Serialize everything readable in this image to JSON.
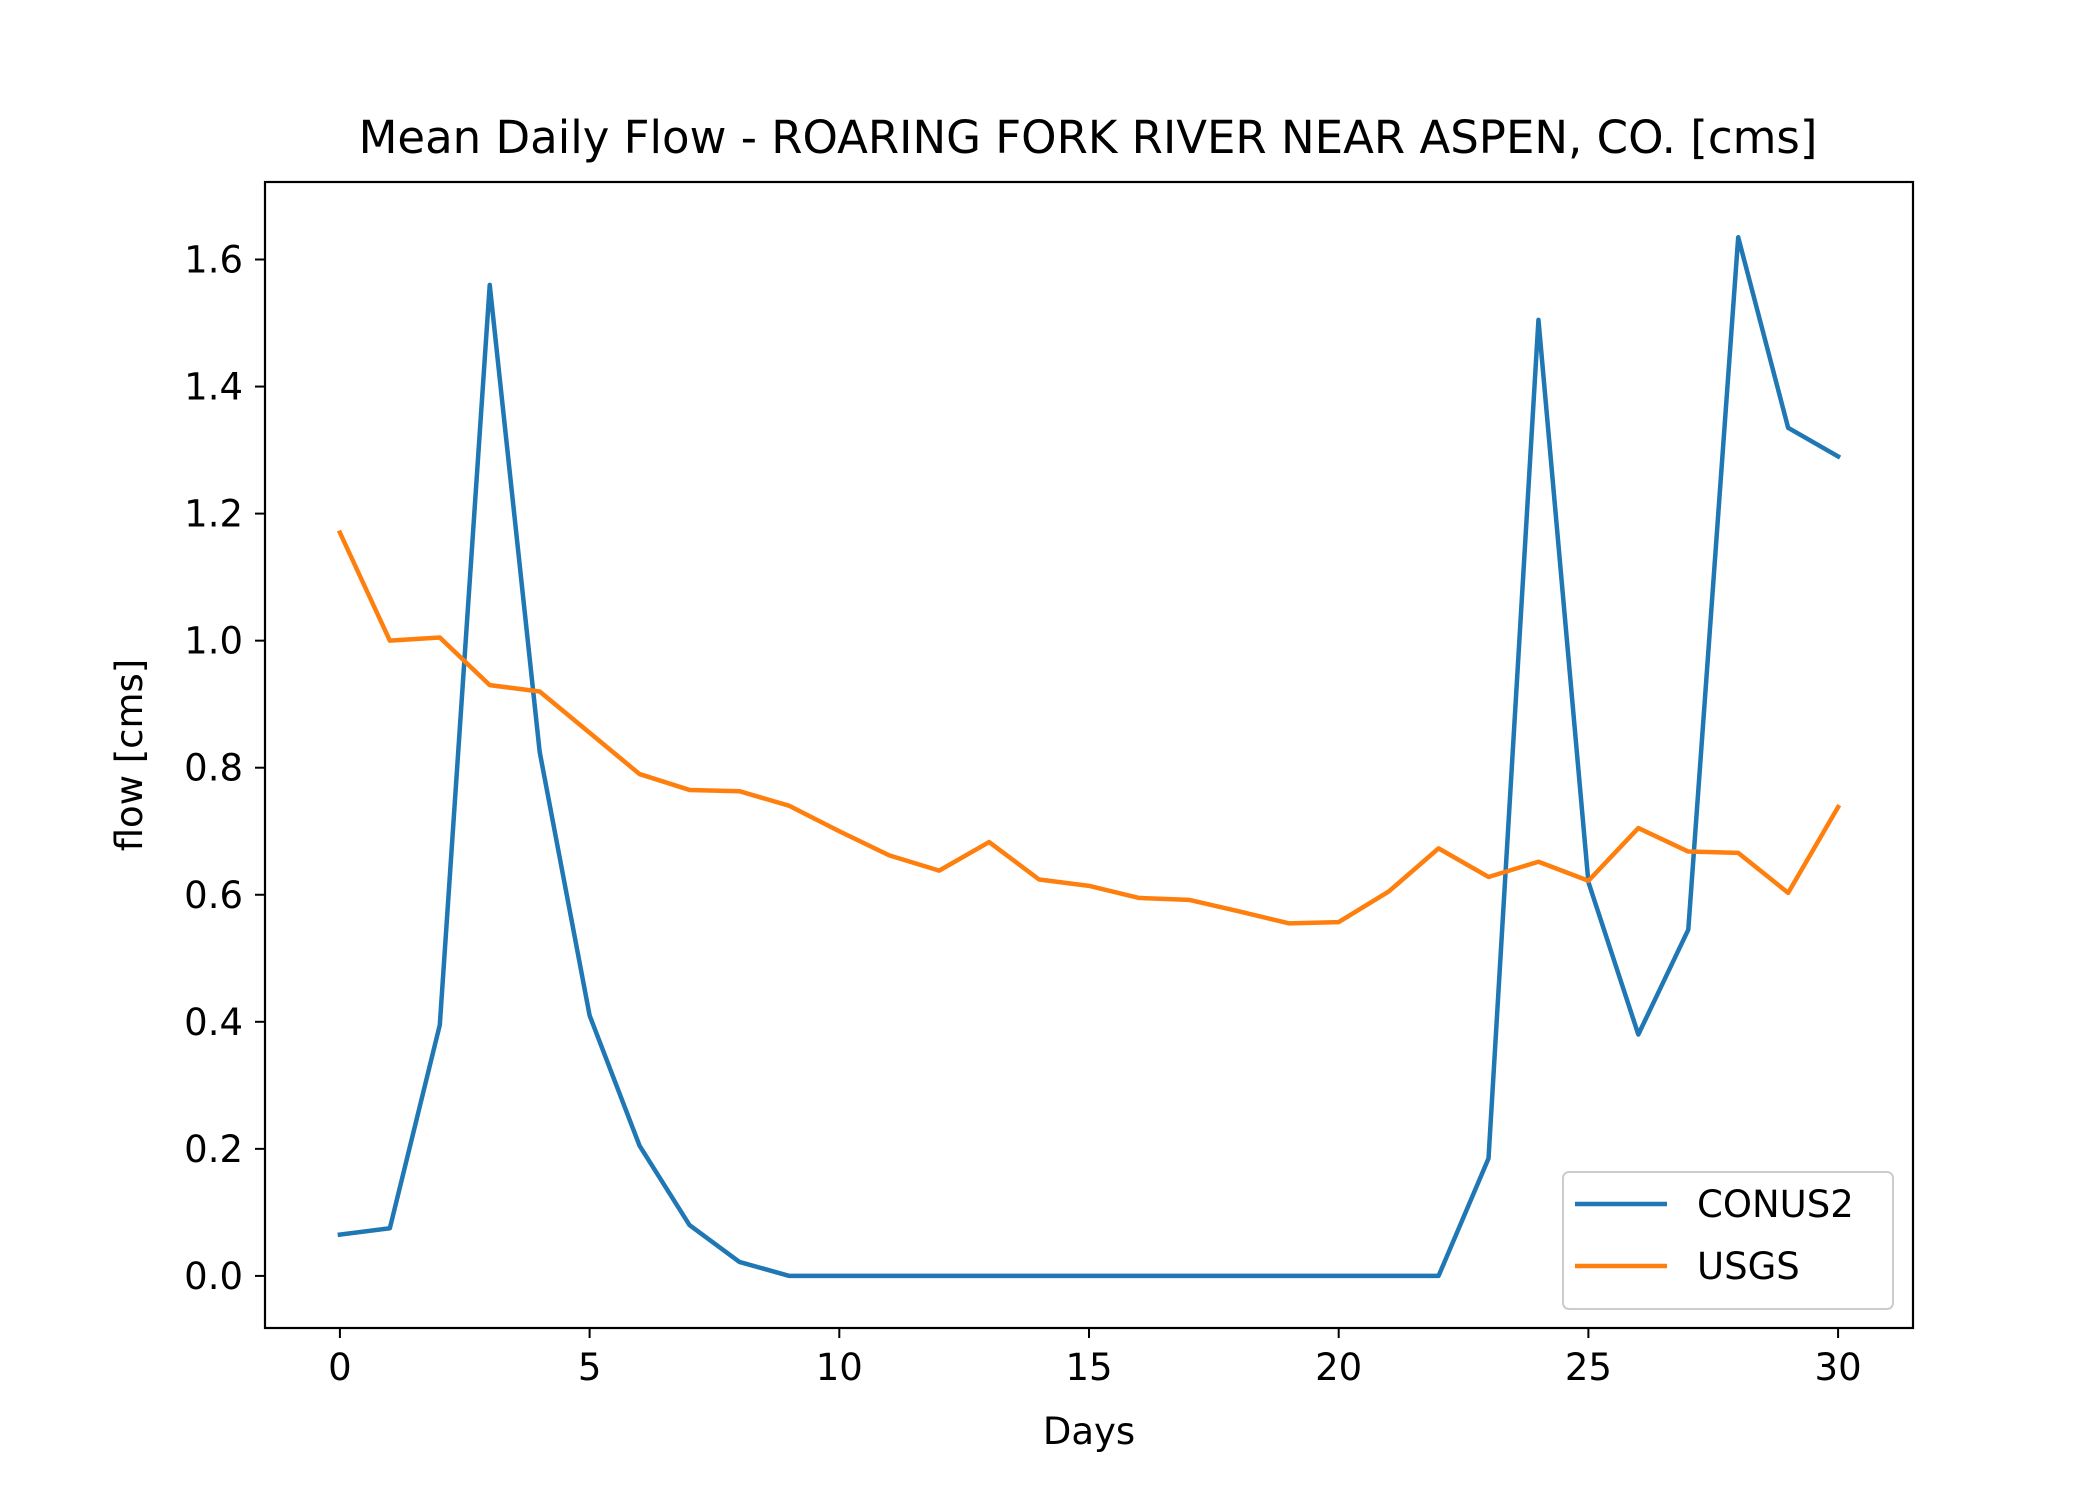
{
  "chart_data": {
    "type": "line",
    "title": "Mean Daily Flow - ROARING FORK RIVER NEAR ASPEN, CO. [cms]",
    "xlabel": "Days",
    "ylabel": "flow [cms]",
    "xlim": [
      -1.5,
      31.5
    ],
    "ylim": [
      -0.082,
      1.722
    ],
    "xticks": [
      0,
      5,
      10,
      15,
      20,
      25,
      30
    ],
    "xtick_labels": [
      "0",
      "5",
      "10",
      "15",
      "20",
      "25",
      "30"
    ],
    "yticks": [
      0.0,
      0.2,
      0.4,
      0.6,
      0.8,
      1.0,
      1.2,
      1.4,
      1.6
    ],
    "ytick_labels": [
      "0.0",
      "0.2",
      "0.4",
      "0.6",
      "0.8",
      "1.0",
      "1.2",
      "1.4",
      "1.6"
    ],
    "grid": false,
    "legend_position": "lower right",
    "x": [
      0,
      1,
      2,
      3,
      4,
      5,
      6,
      7,
      8,
      9,
      10,
      11,
      12,
      13,
      14,
      15,
      16,
      17,
      18,
      19,
      20,
      21,
      22,
      23,
      24,
      25,
      26,
      27,
      28,
      29,
      30
    ],
    "series": [
      {
        "name": "CONUS2",
        "color": "#1f77b4",
        "values": [
          0.065,
          0.075,
          0.395,
          1.56,
          0.825,
          0.41,
          0.205,
          0.08,
          0.022,
          0.0,
          0.0,
          0.0,
          0.0,
          0.0,
          0.0,
          0.0,
          0.0,
          0.0,
          0.0,
          0.0,
          0.0,
          0.0,
          0.0,
          0.185,
          1.505,
          0.62,
          0.38,
          0.545,
          1.635,
          1.335,
          1.29
        ]
      },
      {
        "name": "USGS",
        "color": "#ff7f0e",
        "values": [
          1.17,
          1.0,
          1.005,
          0.93,
          0.92,
          0.855,
          0.79,
          0.765,
          0.763,
          0.74,
          0.7,
          0.662,
          0.638,
          0.683,
          0.624,
          0.614,
          0.595,
          0.592,
          0.574,
          0.555,
          0.557,
          0.605,
          0.673,
          0.628,
          0.652,
          0.622,
          0.705,
          0.668,
          0.666,
          0.603,
          0.738
        ]
      }
    ]
  }
}
